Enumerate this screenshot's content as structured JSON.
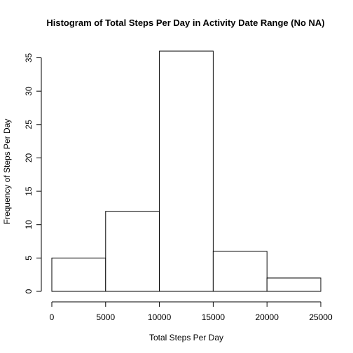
{
  "chart_data": {
    "type": "bar",
    "title": "Histogram of Total Steps Per Day in Activity Date Range (No NA)",
    "xlabel": "Total Steps Per Day",
    "ylabel": "Frequency of Steps Per Day",
    "bins": [
      {
        "from": 0,
        "to": 5000,
        "count": 5
      },
      {
        "from": 5000,
        "to": 10000,
        "count": 12
      },
      {
        "from": 10000,
        "to": 15000,
        "count": 36
      },
      {
        "from": 15000,
        "to": 20000,
        "count": 6
      },
      {
        "from": 20000,
        "to": 25000,
        "count": 2
      }
    ],
    "xlim": [
      0,
      25000
    ],
    "ylim": [
      0,
      36
    ],
    "x_ticks": [
      "0",
      "5000",
      "10000",
      "15000",
      "20000",
      "25000"
    ],
    "y_ticks": [
      "0",
      "5",
      "10",
      "15",
      "20",
      "25",
      "30",
      "35"
    ],
    "bar_fill": "#ffffff",
    "bar_stroke": "#000000",
    "grid": false,
    "legend": "none"
  }
}
